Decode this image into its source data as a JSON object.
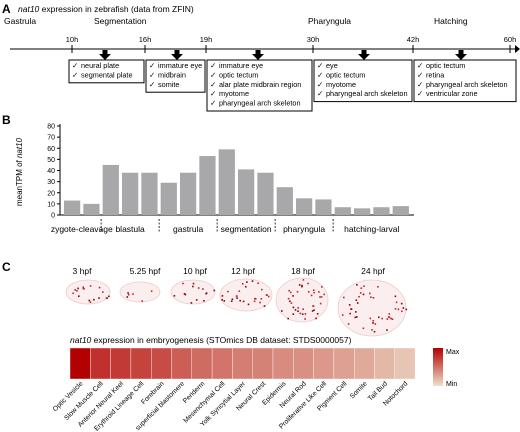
{
  "panelA": {
    "label": "A",
    "title_gene": "nat10",
    "title_rest": " expression in zebrafish (data from ZFIN)",
    "stages": [
      "Gastrula",
      "Segmentation",
      "Pharyngula",
      "Hatching"
    ],
    "times": [
      "10h",
      "16h",
      "19h",
      "30h",
      "42h",
      "60h"
    ],
    "boxes": [
      {
        "items": [
          "neural plate",
          "segmental plate"
        ]
      },
      {
        "items": [
          "immature eye",
          "midbrain",
          "somite"
        ]
      },
      {
        "items": [
          "immature eye",
          "optic tectum",
          "alar plate midbrain region",
          "myotome",
          "pharyngeal arch skeleton"
        ]
      },
      {
        "items": [
          "eye",
          "optic tectum",
          "myotome",
          "pharyngeal arch skeleton"
        ]
      },
      {
        "items": [
          "optic tectum",
          "retina",
          "pharyngeal arch skeleton",
          "ventricular zone"
        ]
      }
    ],
    "check": "✓"
  },
  "panelB": {
    "label": "B",
    "ylabel_prefix": "meanTPM of ",
    "ylabel_gene": "nat10",
    "stage_labels": [
      "zygote-cleavage",
      "blastula",
      "gastrula",
      "segmentation",
      "pharyngula",
      "hatching-larval"
    ]
  },
  "panelC": {
    "label": "C",
    "hpf_labels": [
      "3 hpf",
      "5.25 hpf",
      "10 hpf",
      "12 hpf",
      "18 hpf",
      "24 hpf"
    ],
    "heat_title_gene": "nat10",
    "heat_title_rest": " expression in embryogenesis (STOmics DB dataset: STDS0000057)",
    "legend_max": "Max",
    "legend_min": "Min",
    "tissues": [
      "Optic Vesicle",
      "Slow Muscle Cell",
      "Anterior Neural Keel",
      "Erythroid Lineage Cell",
      "Forebrain",
      "superficial blastomere",
      "Periderm",
      "Mesenchymal Cell",
      "Yolk Syncytial Layer",
      "Neural Crest",
      "Epidermis",
      "Neural Rod",
      "Proliferative Like Cell",
      "Pigment Cell",
      "Somite",
      "Tail Bud",
      "Notochord"
    ]
  },
  "colors": {
    "bar": "#a8a8ab",
    "heat_max": "#b30000",
    "heat_min": "#eee0cc"
  },
  "chart_data": [
    {
      "type": "bar",
      "title": "",
      "xlabel": "",
      "ylabel": "meanTPM of nat10",
      "ylim": [
        0,
        80
      ],
      "yticks": [
        0,
        10,
        20,
        30,
        40,
        50,
        60,
        70,
        80
      ],
      "grid": false,
      "values": [
        13,
        10,
        45,
        38,
        38,
        29,
        38,
        53,
        59,
        41,
        38,
        25,
        15,
        14,
        7,
        6,
        7,
        8
      ],
      "groups": [
        {
          "label": "zygote-cleavage",
          "bars": 2
        },
        {
          "label": "blastula",
          "bars": 3
        },
        {
          "label": "gastrula",
          "bars": 3
        },
        {
          "label": "segmentation",
          "bars": 3
        },
        {
          "label": "pharyngula",
          "bars": 3
        },
        {
          "label": "hatching-larval",
          "bars": 4
        }
      ]
    },
    {
      "type": "heatmap",
      "title": "nat10 expression in embryogenesis (STOmics DB dataset: STDS0000057)",
      "categories": [
        "Optic Vesicle",
        "Slow Muscle Cell",
        "Anterior Neural Keel",
        "Erythroid Lineage Cell",
        "Forebrain",
        "superficial blastomere",
        "Periderm",
        "Mesenchymal Cell",
        "Yolk Syncytial Layer",
        "Neural Crest",
        "Epidermis",
        "Neural Rod",
        "Proliferative Like Cell",
        "Pigment Cell",
        "Somite",
        "Tail Bud",
        "Notochord"
      ],
      "values": [
        1.0,
        0.78,
        0.74,
        0.7,
        0.66,
        0.58,
        0.52,
        0.48,
        0.44,
        0.42,
        0.38,
        0.36,
        0.32,
        0.28,
        0.24,
        0.18,
        0.12
      ],
      "legend": {
        "max": "Max",
        "min": "Min"
      }
    }
  ]
}
